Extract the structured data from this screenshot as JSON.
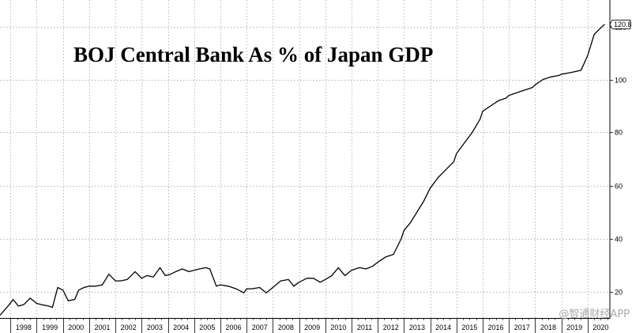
{
  "chart_data": {
    "type": "line",
    "title": "BOJ Central Bank As % of Japan GDP",
    "xlabel": "",
    "ylabel": "",
    "x_tick_labels": [
      "1998",
      "1999",
      "2000",
      "2001",
      "2002",
      "2003",
      "2004",
      "2005",
      "2006",
      "2007",
      "2008",
      "2009",
      "2010",
      "2011",
      "2012",
      "2013",
      "2014",
      "2015",
      "2016",
      "2017",
      "2018",
      "2019",
      "2020"
    ],
    "y_ticks": [
      20,
      40,
      60,
      80,
      100,
      120
    ],
    "xlim": [
      1997.6,
      2020.85
    ],
    "ylim": [
      10,
      130
    ],
    "grid": true,
    "line_color": "#000000",
    "series": [
      {
        "name": "",
        "x": [
          1997.6,
          1997.95,
          1998.1,
          1998.3,
          1998.5,
          1998.75,
          1999.0,
          1999.2,
          1999.45,
          1999.6,
          1999.8,
          2000.0,
          2000.2,
          2000.45,
          2000.6,
          2000.8,
          2001.0,
          2001.25,
          2001.5,
          2001.75,
          2002.0,
          2002.2,
          2002.45,
          2002.75,
          2003.0,
          2003.2,
          2003.45,
          2003.7,
          2003.9,
          2004.1,
          2004.3,
          2004.55,
          2004.8,
          2005.0,
          2005.2,
          2005.45,
          2005.6,
          2005.85,
          2006.0,
          2006.3,
          2006.6,
          2006.9,
          2007.0,
          2007.2,
          2007.5,
          2007.75,
          2008.0,
          2008.3,
          2008.6,
          2008.8,
          2009.0,
          2009.3,
          2009.55,
          2009.8,
          2010.0,
          2010.25,
          2010.5,
          2010.75,
          2011.0,
          2011.3,
          2011.55,
          2011.8,
          2012.0,
          2012.3,
          2012.6,
          2012.9,
          2013.0,
          2013.25,
          2013.5,
          2013.75,
          2014.0,
          2014.3,
          2014.6,
          2014.9,
          2015.0,
          2015.3,
          2015.6,
          2015.9,
          2016.0,
          2016.3,
          2016.6,
          2016.9,
          2017.0,
          2017.3,
          2017.6,
          2017.9,
          2018.0,
          2018.3,
          2018.6,
          2018.9,
          2019.0,
          2019.3,
          2019.55,
          2019.75,
          2020.0,
          2020.25,
          2020.5,
          2020.65
        ],
        "values": [
          11,
          15,
          17,
          14.5,
          15,
          17.5,
          15.5,
          15,
          14.5,
          14,
          21.5,
          20.5,
          16.5,
          17,
          20.5,
          21.5,
          22,
          22,
          22.5,
          26.5,
          24,
          24,
          24.5,
          27.5,
          25,
          26,
          25.5,
          29,
          26,
          26.5,
          27.5,
          28.5,
          27.5,
          28,
          28.5,
          29,
          28.5,
          22,
          22.5,
          22,
          21,
          19.5,
          21,
          21,
          21.5,
          19.5,
          21.5,
          24,
          24.5,
          22,
          23.5,
          25,
          25,
          23.5,
          24.5,
          26,
          29,
          26,
          28,
          29,
          28.5,
          29.5,
          31,
          33,
          34,
          40,
          43,
          46,
          50,
          54,
          59,
          63,
          66,
          69,
          72,
          76,
          80,
          85,
          88,
          90,
          92,
          93,
          94,
          95,
          96,
          97,
          98,
          100,
          101,
          101.5,
          102,
          102.5,
          103,
          103.5,
          109,
          117,
          119.5,
          120.8
        ]
      }
    ],
    "end_label": "120.8",
    "watermark": "@智通财经APP"
  }
}
